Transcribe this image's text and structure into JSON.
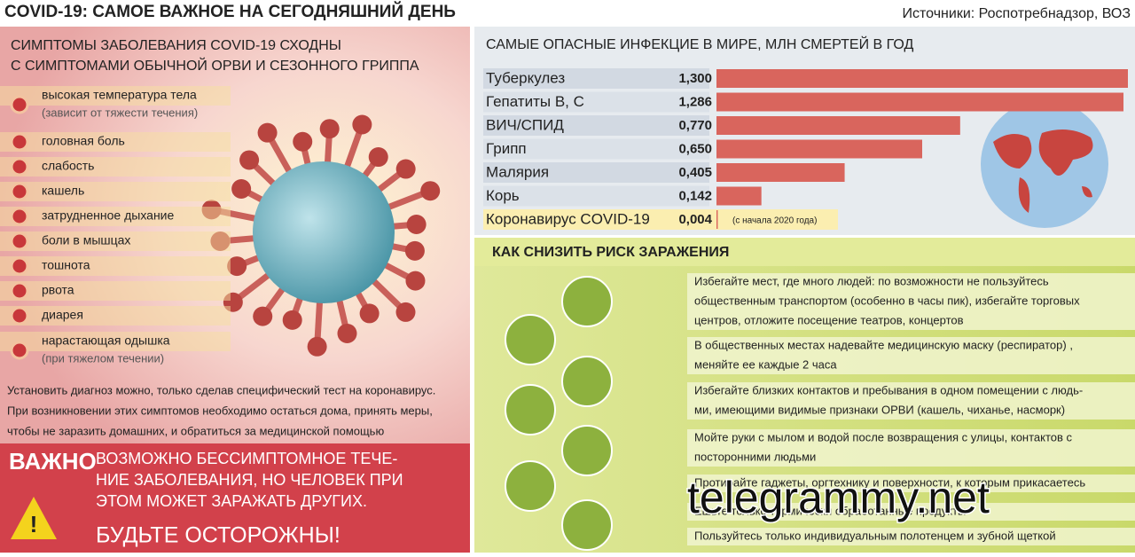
{
  "header": {
    "title": "COVID-19: САМОЕ ВАЖНОЕ НА СЕГОДНЯШНИЙ ДЕНЬ",
    "source": "Источники: Роспотребнадзор, ВОЗ"
  },
  "symptoms": {
    "heading": [
      "СИМПТОМЫ ЗАБОЛЕВАНИЯ COVID-19 СХОДНЫ",
      "С СИМПТОМАМИ ОБЫЧНОЙ ОРВИ И СЕЗОННОГО ГРИППА"
    ],
    "items": [
      {
        "text": "высокая температура тела",
        "note": "(зависит от тяжести течения)"
      },
      {
        "text": "головная боль"
      },
      {
        "text": "слабость"
      },
      {
        "text": "кашель"
      },
      {
        "text": "затрудненное дыхание"
      },
      {
        "text": "боли в мышцах"
      },
      {
        "text": "тошнота"
      },
      {
        "text": "рвота"
      },
      {
        "text": "диарея"
      },
      {
        "text": "нарастающая одышка",
        "note": "(при тяжелом течении)"
      }
    ],
    "advice": [
      "Установить диагноз можно, только сделав специфический тест на коронавирус.",
      "При возникновении этих симптомов необходимо остаться дома, принять меры,",
      "чтобы не заразить домашних, и обратиться за медицинской помощью"
    ]
  },
  "important": {
    "label": "ВАЖНО",
    "lines": [
      "ВОЗМОЖНО БЕССИМПТОМНОЕ ТЕЧЕ-",
      "НИЕ ЗАБОЛЕВАНИЯ, НО ЧЕЛОВЕК ПРИ",
      "ЭТОМ МОЖЕТ ЗАРАЖАТЬ ДРУГИХ."
    ],
    "warning": "БУДЬТЕ ОСТОРОЖНЫ!"
  },
  "chart_data": {
    "type": "bar",
    "orientation": "horizontal",
    "title": "САМЫЕ ОПАСНЫЕ ИНФЕКЦИЕ В МИРЕ, МЛН СМЕРТЕЙ В ГОД",
    "categories": [
      "Туберкулез",
      "Гепатиты В, С",
      "ВИЧ/СПИД",
      "Грипп",
      "Малярия",
      "Корь",
      "Коронавирус COVID-19"
    ],
    "values": [
      1.3,
      1.286,
      0.77,
      0.65,
      0.405,
      0.142,
      0.004
    ],
    "value_labels": [
      "1,300",
      "1,286",
      "0,770",
      "0,650",
      "0,405",
      "0,142",
      "0,004"
    ],
    "color": "#d9655d",
    "xlim": [
      0,
      1.3
    ],
    "note": "(с начала 2020 года)"
  },
  "prevention": {
    "heading": "КАК СНИЗИТЬ РИСК ЗАРАЖЕНИЯ",
    "items": [
      [
        "Избегайте мест, где много людей: по возможности не пользуйтесь",
        "общественным транспортом (особенно в часы пик), избегайте торговых",
        "центров, отложите посещение театров, концертов"
      ],
      [
        "В общественных местах надевайте медицинскую маску (респиратор) ,",
        "меняйте ее каждые 2 часа"
      ],
      [
        "Избегайте близких контактов и пребывания в одном помещении с людь-",
        "ми, имеющими видимые признаки ОРВИ (кашель, чиханье, насморк)"
      ],
      [
        "Мойте руки с мылом и водой  после возвращения с улицы, контактов с",
        "посторонними людьми"
      ],
      [
        "Протирайте гаджеты, оргтехнику и поверхности, к которым прикасаетесь"
      ],
      [
        "Ешьте только термически обработанные продукты"
      ],
      [
        "Пользуйтесь только индивидуальным полотенцем и зубной щеткой"
      ]
    ]
  },
  "watermark": "telegrammy.net"
}
